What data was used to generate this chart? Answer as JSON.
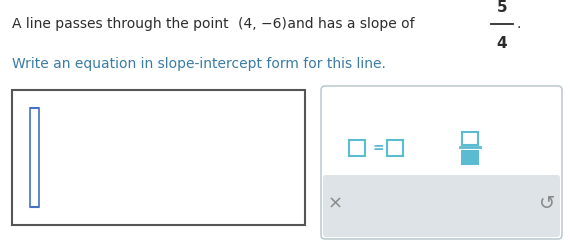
{
  "bg_color": "#ffffff",
  "text_color_black": "#2c2c2c",
  "text_color_teal": "#3a7ca5",
  "teal_icon": "#5bbcd1",
  "teal_icon_fill": "#5bbcd1",
  "panel_border": "#b0c4cc",
  "panel_gray": "#dde3e6",
  "line1a": "A line passes through the point ",
  "line1b": "(4, −6)",
  "line1c": " and has a slope of",
  "slope_num": "5",
  "slope_den": "4",
  "line2": "Write an equation in slope-intercept form for this line.",
  "figw": 5.7,
  "figh": 2.41,
  "dpi": 100
}
